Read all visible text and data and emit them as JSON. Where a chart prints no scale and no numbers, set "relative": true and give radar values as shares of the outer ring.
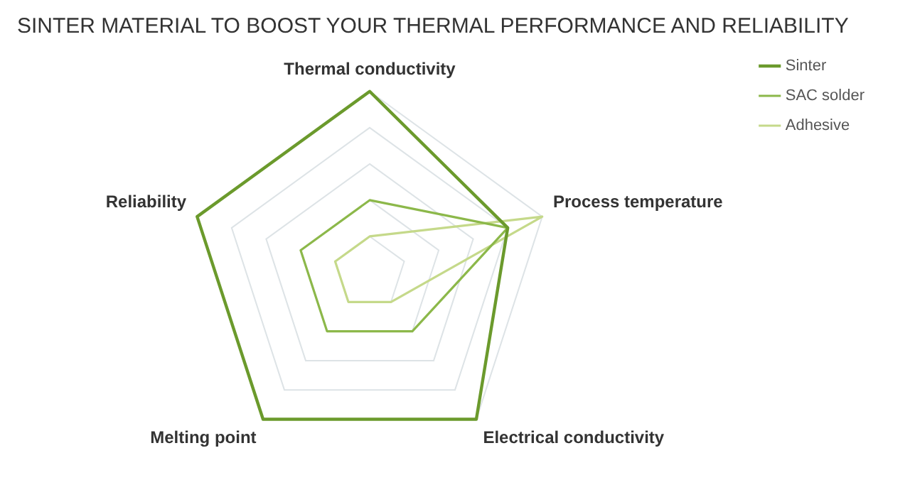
{
  "chart_data": {
    "type": "radar",
    "title": "SINTER MATERIAL TO BOOST YOUR THERMAL PERFORMANCE AND RELIABILITY",
    "categories": [
      "Thermal conductivity",
      "Process temperature",
      "Electrical conductivity",
      "Melting point",
      "Reliability"
    ],
    "relative": true,
    "grid": true,
    "legend": "top right",
    "marker": "none",
    "series": [
      {
        "name": "Sinter",
        "color": "#6b9a2c",
        "values": [
          1,
          0.8,
          1,
          1,
          1
        ]
      },
      {
        "name": "SAC solder",
        "color": "#8cb84a",
        "values": [
          0.4,
          0.8,
          0.4,
          0.4,
          0.4
        ]
      },
      {
        "name": "Adhesive",
        "color": "#c5d98a",
        "values": [
          0.2,
          1,
          0.2,
          0.2,
          0.2
        ]
      }
    ]
  }
}
